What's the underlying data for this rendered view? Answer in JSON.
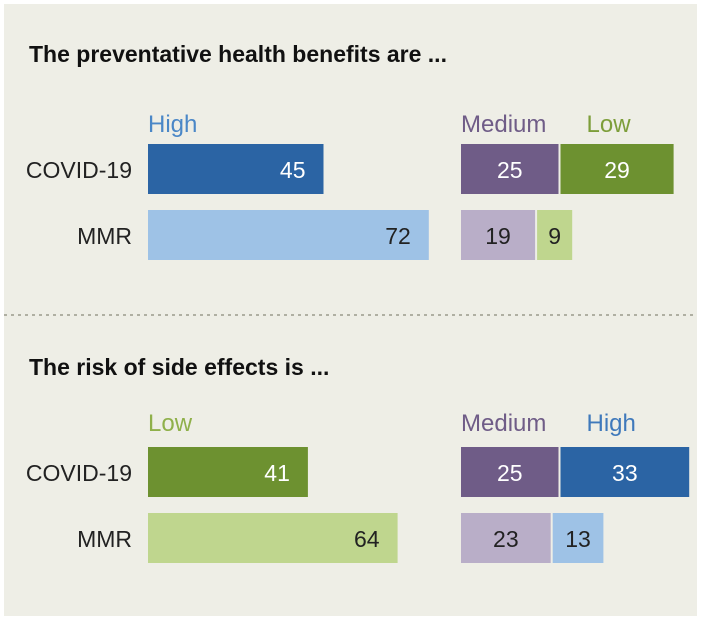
{
  "chart_data": [
    {
      "type": "bar",
      "title": "The preventative health benefits are ...",
      "categories": [
        "COVID-19",
        "MMR"
      ],
      "series": [
        {
          "name": "High",
          "values": [
            45,
            72
          ],
          "colors": [
            "#2b64a4",
            "#9ec2e6"
          ],
          "label_colors": [
            "#ffffff",
            "#222222"
          ]
        },
        {
          "name": "Medium",
          "values": [
            25,
            19
          ],
          "colors": [
            "#6f5c87",
            "#b9aec8"
          ],
          "label_colors": [
            "#ffffff",
            "#222222"
          ]
        },
        {
          "name": "Low",
          "values": [
            29,
            9
          ],
          "colors": [
            "#6d9130",
            "#bfd68e"
          ],
          "label_colors": [
            "#ffffff",
            "#222222"
          ]
        }
      ],
      "legend_colors": [
        "#4a87c7",
        "#6f5c87",
        "#7d9e3a"
      ]
    },
    {
      "type": "bar",
      "title": "The risk of side effects is ...",
      "categories": [
        "COVID-19",
        "MMR"
      ],
      "series": [
        {
          "name": "Low",
          "values": [
            41,
            64
          ],
          "colors": [
            "#6d9130",
            "#bfd68e"
          ],
          "label_colors": [
            "#ffffff",
            "#222222"
          ]
        },
        {
          "name": "Medium",
          "values": [
            25,
            23
          ],
          "colors": [
            "#6f5c87",
            "#b9aec8"
          ],
          "label_colors": [
            "#ffffff",
            "#222222"
          ]
        },
        {
          "name": "High",
          "values": [
            33,
            13
          ],
          "colors": [
            "#2b64a4",
            "#9ec2e6"
          ],
          "label_colors": [
            "#ffffff",
            "#222222"
          ]
        }
      ],
      "legend_colors": [
        "#8fb04a",
        "#6f5c87",
        "#3f79bb"
      ]
    }
  ]
}
